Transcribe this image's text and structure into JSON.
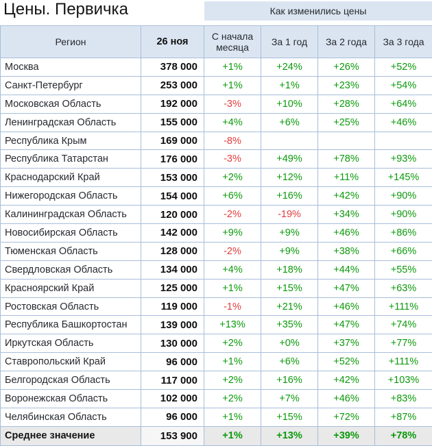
{
  "title": "Цены. Первичка",
  "chart_data": {
    "type": "table",
    "title": "Цены. Первичка",
    "band_title": "Как изменились цены",
    "columns": [
      "Регион",
      "26 ноя",
      "С начала месяца",
      "За 1 год",
      "За 2 года",
      "За 3 года"
    ],
    "rows": [
      [
        "Москва",
        "378 000",
        "+1%",
        "+24%",
        "+26%",
        "+52%"
      ],
      [
        "Санкт-Петербург",
        "253 000",
        "+1%",
        "+1%",
        "+23%",
        "+54%"
      ],
      [
        "Московская Область",
        "192 000",
        "-3%",
        "+10%",
        "+28%",
        "+64%"
      ],
      [
        "Ленинградская Область",
        "155 000",
        "+4%",
        "+6%",
        "+25%",
        "+46%"
      ],
      [
        "Республика Крым",
        "169 000",
        "-8%",
        "",
        "",
        ""
      ],
      [
        "Республика Татарстан",
        "176 000",
        "-3%",
        "+49%",
        "+78%",
        "+93%"
      ],
      [
        "Краснодарский Край",
        "153 000",
        "+2%",
        "+12%",
        "+11%",
        "+145%"
      ],
      [
        "Нижегородская Область",
        "154 000",
        "+6%",
        "+16%",
        "+42%",
        "+90%"
      ],
      [
        "Калининградская Область",
        "120 000",
        "-2%",
        "-19%",
        "+34%",
        "+90%"
      ],
      [
        "Новосибирская Область",
        "142 000",
        "+9%",
        "+9%",
        "+46%",
        "+86%"
      ],
      [
        "Тюменская Область",
        "128 000",
        "-2%",
        "+9%",
        "+38%",
        "+66%"
      ],
      [
        "Свердловская Область",
        "134 000",
        "+4%",
        "+18%",
        "+44%",
        "+55%"
      ],
      [
        "Красноярский Край",
        "125 000",
        "+1%",
        "+15%",
        "+47%",
        "+63%"
      ],
      [
        "Ростовская Область",
        "119 000",
        "-1%",
        "+21%",
        "+46%",
        "+111%"
      ],
      [
        "Республика Башкортостан",
        "139 000",
        "+13%",
        "+35%",
        "+47%",
        "+74%"
      ],
      [
        "Иркутская Область",
        "130 000",
        "+2%",
        "+0%",
        "+37%",
        "+77%"
      ],
      [
        "Ставропольский Край",
        "96 000",
        "+1%",
        "+6%",
        "+52%",
        "+111%"
      ],
      [
        "Белгородская Область",
        "117 000",
        "+2%",
        "+16%",
        "+42%",
        "+103%"
      ],
      [
        "Воронежская Область",
        "102 000",
        "+2%",
        "+7%",
        "+46%",
        "+83%"
      ],
      [
        "Челябинская Область",
        "96 000",
        "+1%",
        "+15%",
        "+72%",
        "+87%"
      ]
    ],
    "footer": [
      "Среднее значение",
      "153 900",
      "+1%",
      "+13%",
      "+39%",
      "+78%"
    ]
  },
  "colors": {
    "green": "#0a9a0a",
    "red": "#e23c3c",
    "header_bg": "#dbe5f1",
    "border": "#a7bdda",
    "footer_bg": "#e9e9e9"
  }
}
